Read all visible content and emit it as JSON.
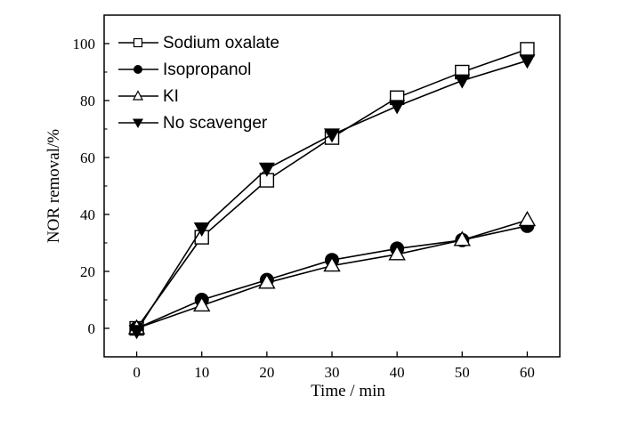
{
  "chart_data": {
    "type": "line",
    "title": "",
    "xlabel": "Time / min",
    "ylabel": "NOR removal/%",
    "xlim": [
      -5,
      65
    ],
    "ylim": [
      -10,
      110
    ],
    "xticks": [
      0,
      10,
      20,
      30,
      40,
      50,
      60
    ],
    "yticks": [
      0,
      20,
      40,
      60,
      80,
      100
    ],
    "grid": false,
    "legend_position": "top-left",
    "x": [
      0,
      10,
      20,
      30,
      40,
      50,
      60
    ],
    "series": [
      {
        "name": "Sodium oxalate",
        "marker": "open-square",
        "values": [
          0,
          32,
          52,
          67,
          81,
          90,
          98
        ]
      },
      {
        "name": "Isopropanol",
        "marker": "filled-circle",
        "values": [
          0,
          10,
          17,
          24,
          28,
          31,
          36
        ]
      },
      {
        "name": "KI",
        "marker": "open-triangle",
        "values": [
          0,
          8,
          16,
          22,
          26,
          31,
          38
        ]
      },
      {
        "name": "No scavenger",
        "marker": "filled-down-triangle",
        "values": [
          -1,
          35,
          56,
          68,
          78,
          87,
          94
        ]
      }
    ]
  }
}
